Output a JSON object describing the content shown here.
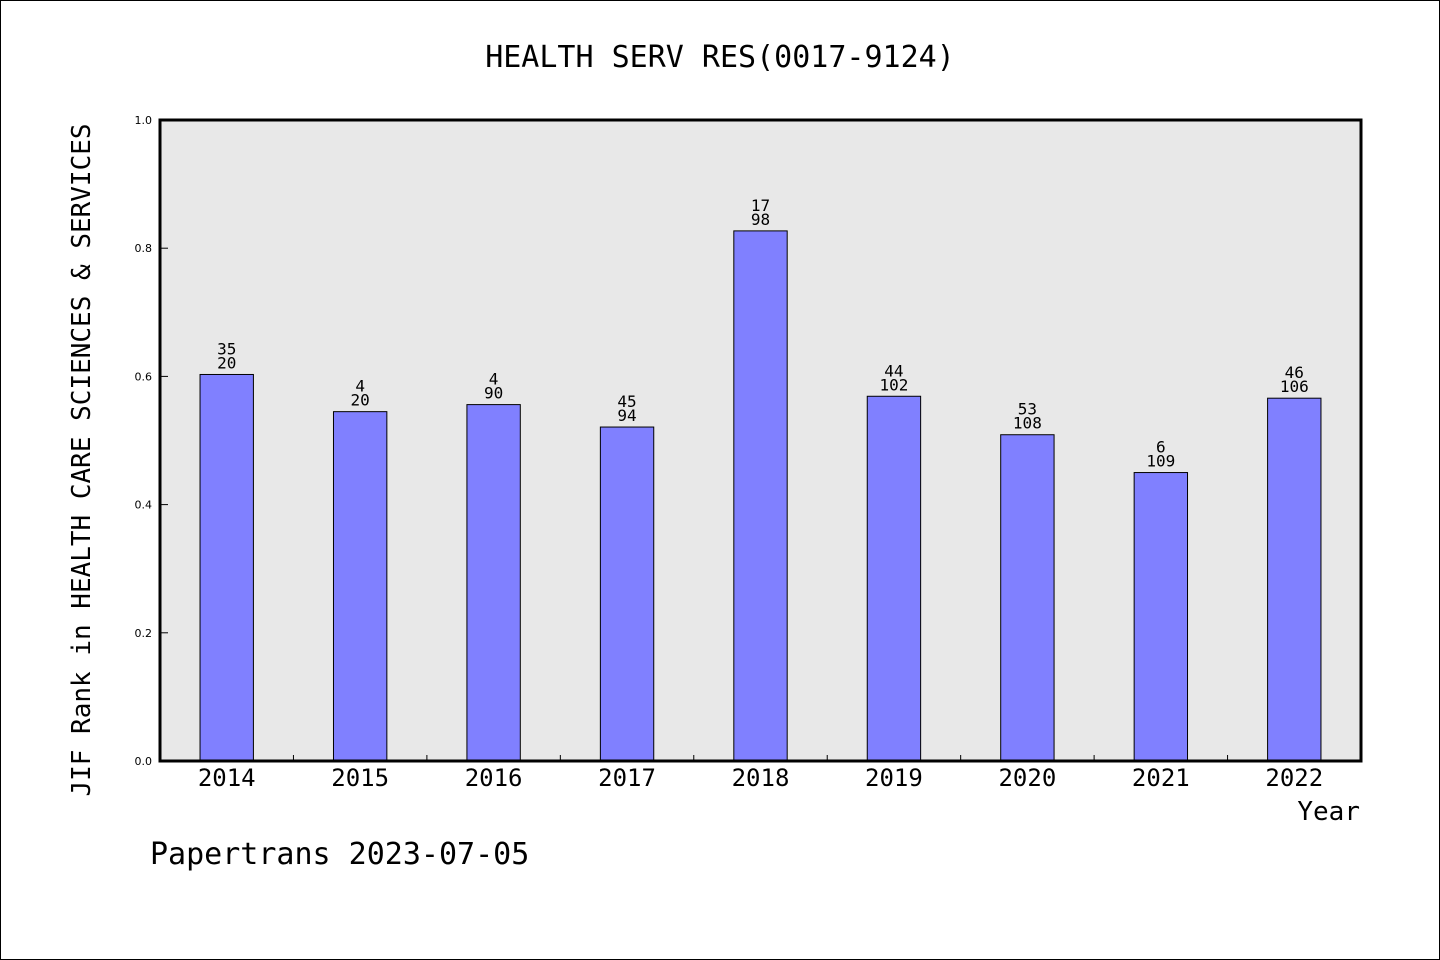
{
  "chart_data": {
    "type": "bar",
    "title": "HEALTH SERV RES(0017-9124)",
    "xlabel": "Year",
    "ylabel": "JIF Rank in HEALTH CARE SCIENCES & SERVICES",
    "ylim": [
      0,
      1.0
    ],
    "yticks": [
      "0.0",
      "0.2",
      "0.4",
      "0.6",
      "0.8",
      "1.0"
    ],
    "grid": false,
    "categories": [
      "2014",
      "2015",
      "2016",
      "2017",
      "2018",
      "2019",
      "2020",
      "2021",
      "2022"
    ],
    "values": [
      0.603,
      0.545,
      0.556,
      0.521,
      0.827,
      0.569,
      0.509,
      0.45,
      0.566
    ],
    "rank_labels": [
      "35",
      "4",
      "4",
      "45",
      "17",
      "44",
      "53",
      "6",
      "46"
    ],
    "total_labels": [
      "20",
      "20",
      "90",
      "94",
      "98",
      "102",
      "108",
      "109",
      "106"
    ],
    "bar_color": "#8080ff",
    "plot_bg": "#e8e8e8"
  },
  "footer": "Papertrans 2023-07-05"
}
